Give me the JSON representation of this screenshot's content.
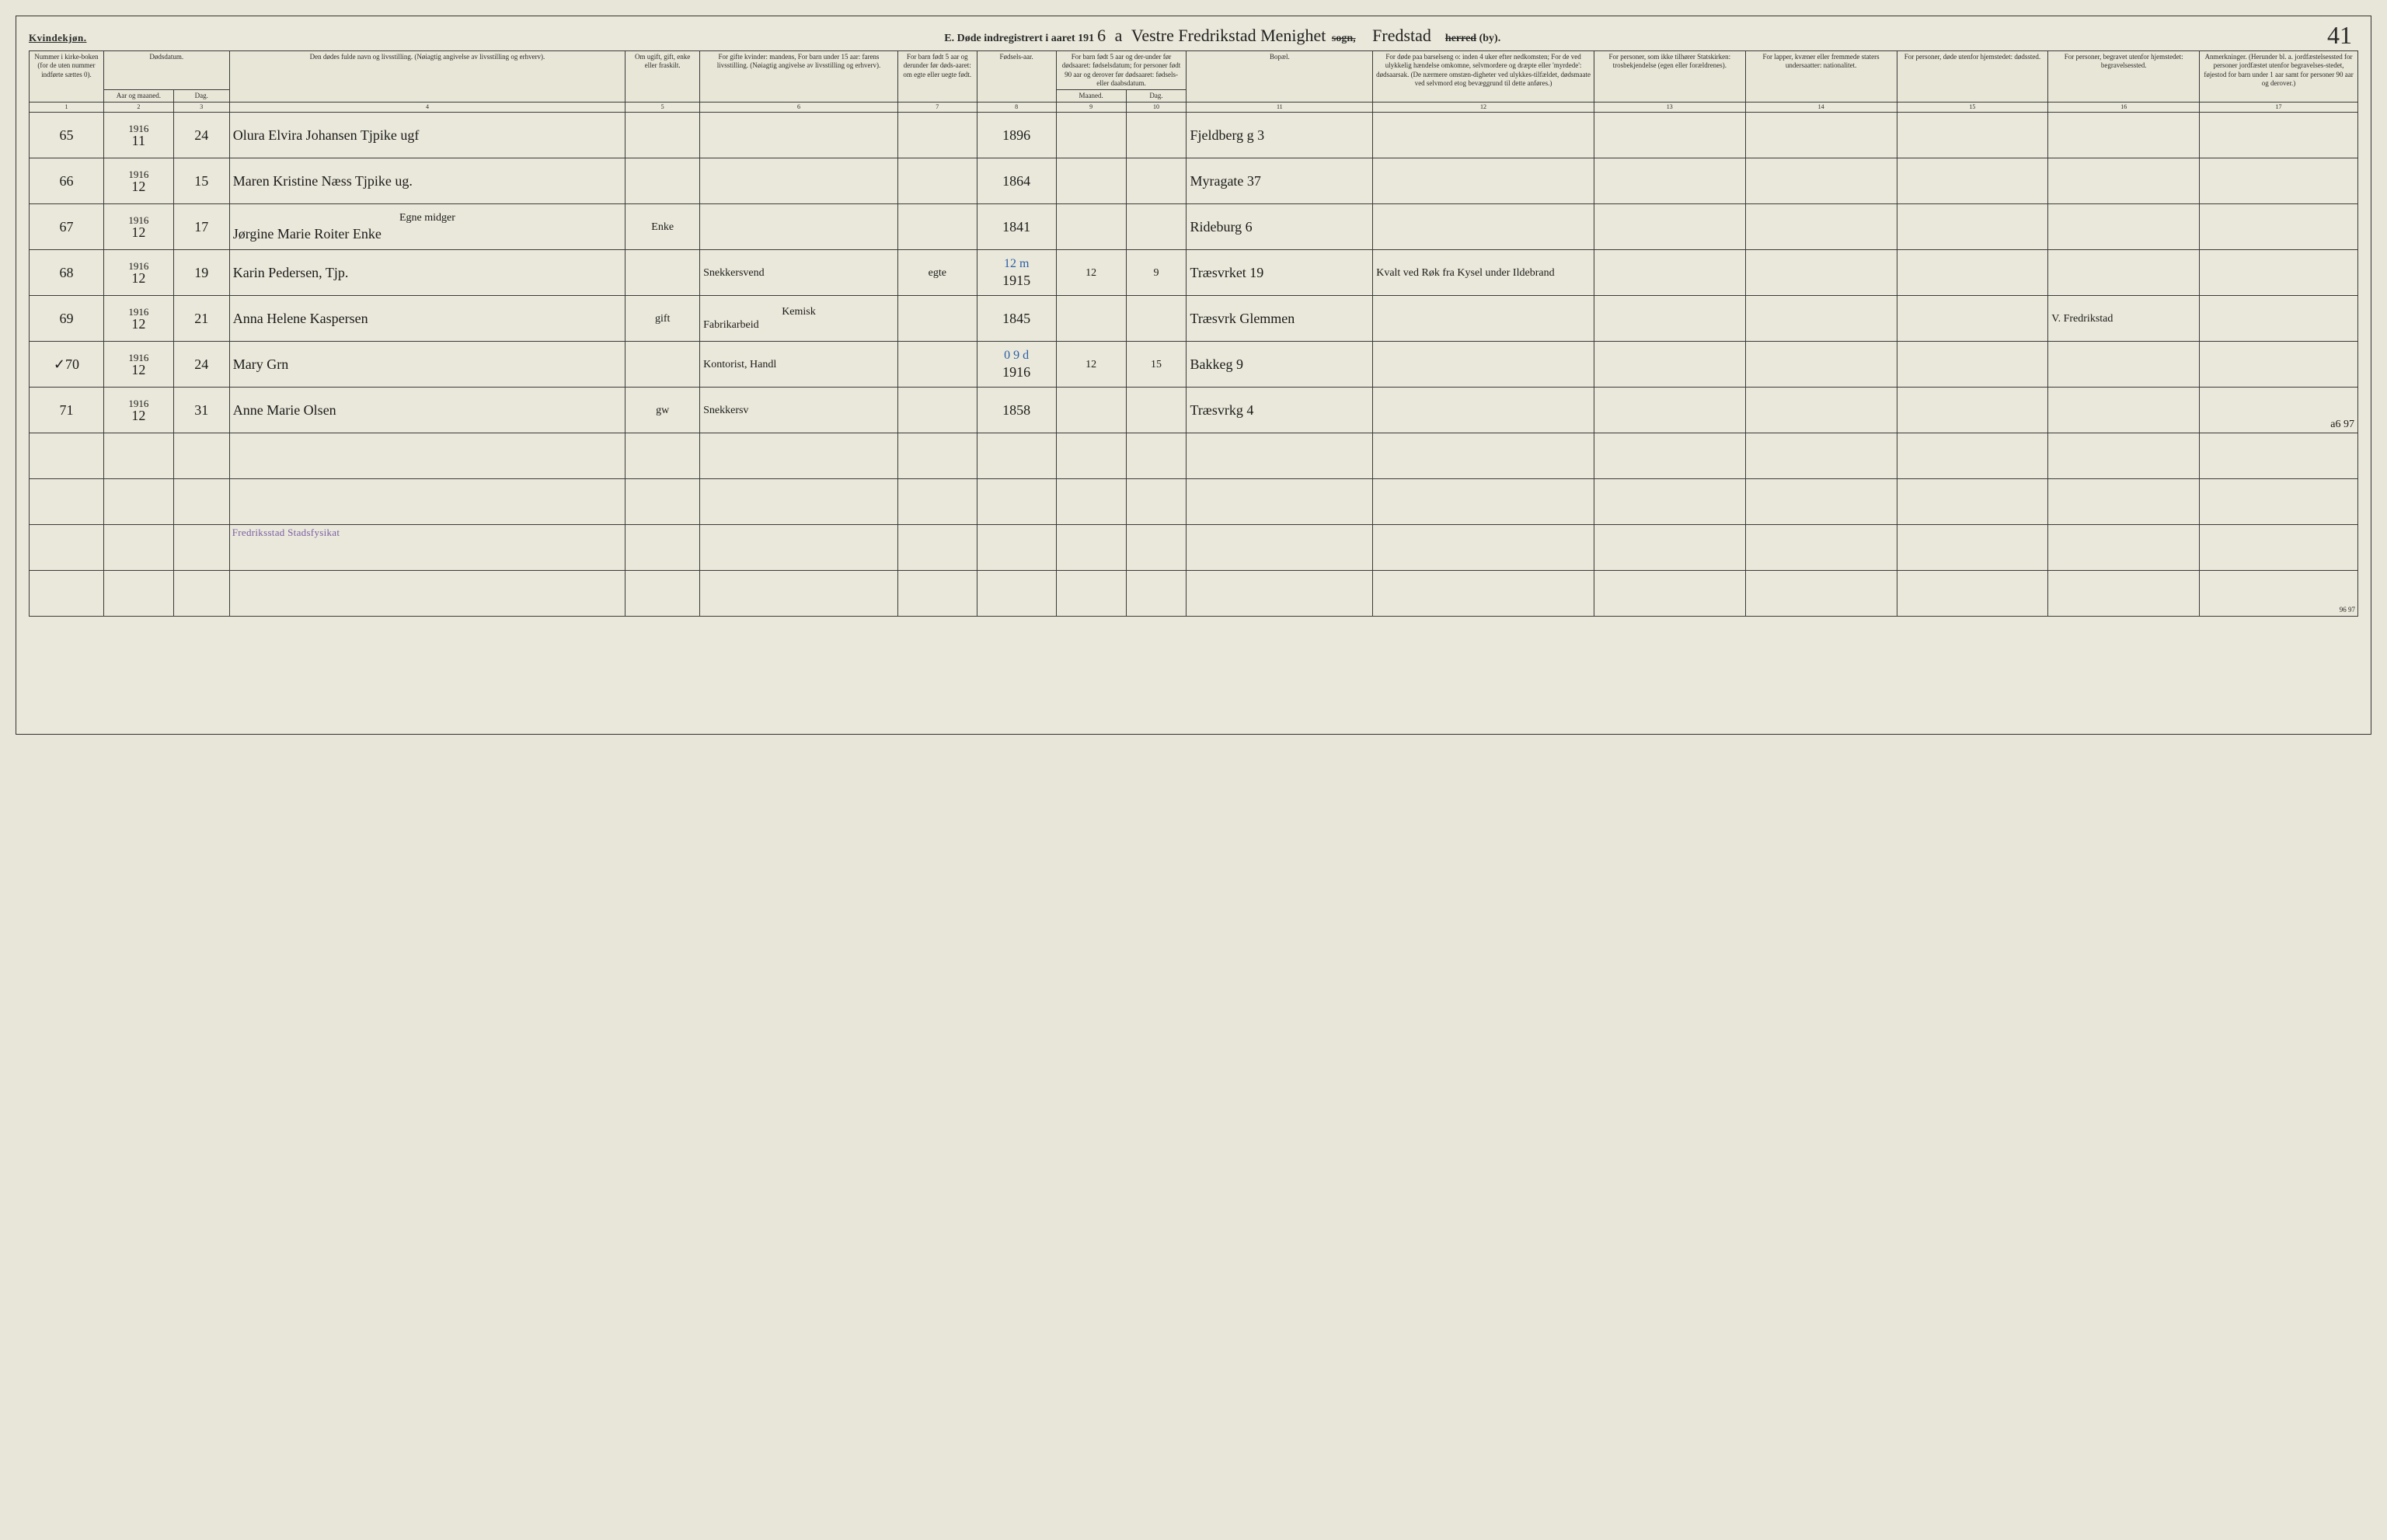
{
  "header": {
    "gender_label": "Kvindekjøn.",
    "title_prefix": "E.   Døde indregistrert i aaret 191",
    "year_digit": "6",
    "av": "a",
    "parish_handwritten": "Vestre Fredrikstad Menighet",
    "sogn_label": "sogn,",
    "district_handwritten": "Fredstad",
    "herred_label": "herred",
    "by_label": "(by).",
    "page_number": "41"
  },
  "columns": {
    "c1": "Nummer i kirke-boken (for de uten nummer indførte sættes 0).",
    "c2_group": "Dødsdatum.",
    "c2a": "Aar og maaned.",
    "c2b": "Dag.",
    "c4": "Den dødes fulde navn og livsstilling. (Nøiagtig angivelse av livsstilling og erhverv).",
    "c5": "Om ugift, gift, enke eller fraskilt.",
    "c6": "For gifte kvinder: mandens, For barn under 15 aar: farens livsstilling. (Nøiagtig angivelse av livsstilling og erhverv).",
    "c7": "For barn født 5 aar og derunder før døds-aaret: om egte eller uegte født.",
    "c8": "Fødsels-aar.",
    "c9_group": "For barn født 5 aar og der-under før dødsaaret: fødselsdatum; for personer født 90 aar og derover før dødsaaret: fødsels- eller daabsdatum.",
    "c9a": "Maaned.",
    "c9b": "Dag.",
    "c11": "Bopæl.",
    "c12": "For døde paa barselseng o: inden 4 uker efter nedkomsten; For de ved ulykkelig hændelse omkomne, selvmordere og dræpte eller 'myrdede': dødsaarsak. (De nærmere omstæn-digheter ved ulykkes-tilfældet, dødsmaate ved selvmord etog bevæggrund til dette anføres.)",
    "c13": "For personer, som ikke tilhører Statskirken: trosbekjendelse (egen eller forældrenes).",
    "c14": "For lapper, kvæner eller fremmede staters undersaatter: nationalitet.",
    "c15": "For personer, døde utenfor hjemstedet: dødssted.",
    "c16": "For personer, begravet utenfor hjemstedet: begravelsessted.",
    "c17": "Anmerkninger. (Herunder bl. a. jordfæstelsessted for personer jordfæstet utenfor begravelses-stedet, føjestod for barn under 1 aar samt for personer 90 aar og derover.)"
  },
  "colnums": [
    "1",
    "2",
    "3",
    "4",
    "5",
    "6",
    "7",
    "8",
    "9",
    "10",
    "11",
    "12",
    "13",
    "14",
    "15",
    "16",
    "17"
  ],
  "rows": [
    {
      "num": "65",
      "year": "1916",
      "month": "11",
      "day": "24",
      "name": "Olura Elvira Johansen Tjpike ugf",
      "status": "",
      "spouse": "",
      "legit": "",
      "birth": "1896",
      "bm": "",
      "bd": "",
      "residence": "Fjeldberg g 3",
      "cause": "",
      "faith": "",
      "nat": "",
      "deathplace": "",
      "burial": "",
      "notes": ""
    },
    {
      "num": "66",
      "year": "1916",
      "month": "12",
      "day": "15",
      "name": "Maren Kristine Næss Tjpike ug.",
      "status": "",
      "spouse": "",
      "legit": "",
      "birth": "1864",
      "bm": "",
      "bd": "",
      "residence": "Myragate 37",
      "cause": "",
      "faith": "",
      "nat": "",
      "deathplace": "",
      "burial": "",
      "notes": ""
    },
    {
      "num": "67",
      "year": "1916",
      "month": "12",
      "day": "17",
      "name": "Jørgine Marie Roiter Enke",
      "above_name": "Egne midger",
      "status": "Enke",
      "spouse": "",
      "legit": "",
      "birth": "1841",
      "bm": "",
      "bd": "",
      "residence": "Rideburg 6",
      "cause": "",
      "faith": "",
      "nat": "",
      "deathplace": "",
      "burial": "",
      "notes": ""
    },
    {
      "num": "68",
      "year": "1916",
      "month": "12",
      "day": "19",
      "name": "Karin Pedersen, Tjp.",
      "status": "",
      "spouse": "Snekkersvend",
      "legit": "egte",
      "birth": "1915",
      "birth_note": "12 m",
      "bm": "12",
      "bd": "9",
      "residence": "Træsvrket 19",
      "cause": "Kvalt ved Røk fra Kysel under Ildebrand",
      "faith": "",
      "nat": "",
      "deathplace": "",
      "burial": "",
      "notes": ""
    },
    {
      "num": "69",
      "year": "1916",
      "month": "12",
      "day": "21",
      "name": "Anna Helene Kaspersen",
      "status": "gift",
      "spouse": "Fabrikarbeid",
      "spouse_above": "Kemisk",
      "legit": "",
      "birth": "1845",
      "bm": "",
      "bd": "",
      "residence": "Træsvrk Glemmen",
      "cause": "",
      "faith": "",
      "nat": "",
      "deathplace": "",
      "burial": "V. Fredrikstad",
      "notes": ""
    },
    {
      "num": "✓70",
      "year": "1916",
      "month": "12",
      "day": "24",
      "name": "Mary Grn",
      "status": "",
      "spouse": "Kontorist, Handl",
      "legit": "",
      "birth": "1916",
      "birth_note": "0 9 d",
      "bm": "12",
      "bd": "15",
      "residence": "Bakkeg 9",
      "cause": "",
      "faith": "",
      "nat": "",
      "deathplace": "",
      "burial": "",
      "notes": ""
    },
    {
      "num": "71",
      "year": "1916",
      "month": "12",
      "day": "31",
      "name": "Anne Marie Olsen",
      "status": "gw",
      "spouse": "Snekkersv",
      "legit": "",
      "birth": "1858",
      "bm": "",
      "bd": "",
      "residence": "Træsvrkg 4",
      "cause": "",
      "faith": "",
      "nat": "",
      "deathplace": "",
      "burial": "",
      "notes": "a6 97"
    }
  ],
  "stamp": "Fredriksstad Stadsfysikat",
  "bottom_note": "96 97"
}
